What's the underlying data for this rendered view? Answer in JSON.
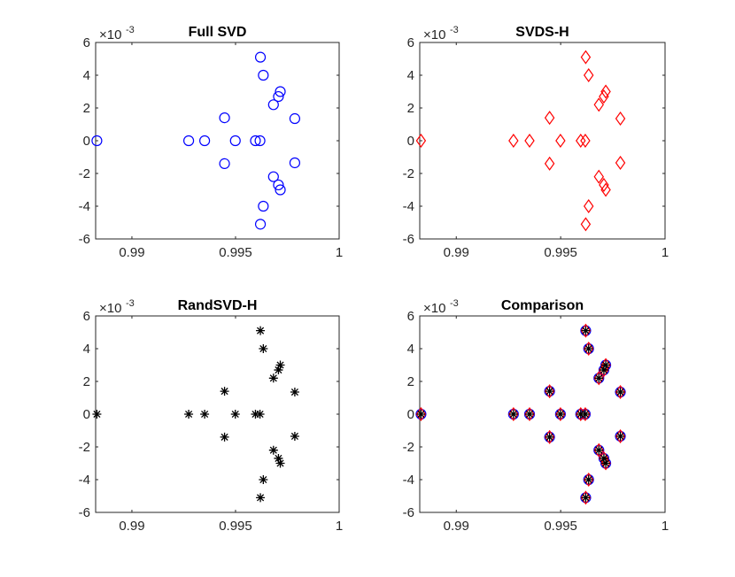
{
  "chart_data": [
    {
      "type": "scatter",
      "title": "Full SVD",
      "series": [
        {
          "name": "Full SVD",
          "marker": "circle",
          "color": "#0000ff"
        }
      ],
      "x_ticks": [
        "0.99",
        "0.995",
        "1"
      ],
      "y_ticks": [
        "6",
        "4",
        "2",
        "0",
        "-2",
        "-4",
        "-6"
      ],
      "y_exponent_base": "×10",
      "y_exponent_power": "-3",
      "xlim": [
        0.98825,
        1.0
      ],
      "ylim": [
        -6,
        6
      ]
    },
    {
      "type": "scatter",
      "title": "SVDS-H",
      "series": [
        {
          "name": "SVDS-H",
          "marker": "diamond",
          "color": "#ff0000"
        }
      ],
      "x_ticks": [
        "0.99",
        "0.995",
        "1"
      ],
      "y_ticks": [
        "6",
        "4",
        "2",
        "0",
        "-2",
        "-4",
        "-6"
      ],
      "y_exponent_base": "×10",
      "y_exponent_power": "-3",
      "xlim": [
        0.98825,
        1.0
      ],
      "ylim": [
        -6,
        6
      ]
    },
    {
      "type": "scatter",
      "title": "RandSVD-H",
      "series": [
        {
          "name": "RandSVD-H",
          "marker": "asterisk",
          "color": "#000000"
        }
      ],
      "x_ticks": [
        "0.99",
        "0.995",
        "1"
      ],
      "y_ticks": [
        "6",
        "4",
        "2",
        "0",
        "-2",
        "-4",
        "-6"
      ],
      "y_exponent_base": "×10",
      "y_exponent_power": "-3",
      "xlim": [
        0.98825,
        1.0
      ],
      "ylim": [
        -6,
        6
      ]
    },
    {
      "type": "scatter",
      "title": "Comparison",
      "series": [
        {
          "name": "Full SVD",
          "marker": "circle",
          "color": "#0000ff"
        },
        {
          "name": "SVDS-H",
          "marker": "diamond",
          "color": "#ff0000"
        },
        {
          "name": "RandSVD-H",
          "marker": "asterisk",
          "color": "#000000"
        }
      ],
      "x_ticks": [
        "0.99",
        "0.995",
        "1"
      ],
      "y_ticks": [
        "6",
        "4",
        "2",
        "0",
        "-2",
        "-4",
        "-6"
      ],
      "y_exponent_base": "×10",
      "y_exponent_power": "-3",
      "xlim": [
        0.98825,
        1.0
      ],
      "ylim": [
        -6,
        6
      ]
    }
  ],
  "points": [
    {
      "x": 0.98831,
      "y": 0
    },
    {
      "x": 0.99274,
      "y": 0
    },
    {
      "x": 0.99351,
      "y": 0
    },
    {
      "x": 0.99447,
      "y": 1.4
    },
    {
      "x": 0.99447,
      "y": -1.4
    },
    {
      "x": 0.99499,
      "y": 0
    },
    {
      "x": 0.99596,
      "y": 0
    },
    {
      "x": 0.99618,
      "y": 0
    },
    {
      "x": 0.9962,
      "y": 5.1
    },
    {
      "x": 0.9962,
      "y": -5.1
    },
    {
      "x": 0.99634,
      "y": 4.0
    },
    {
      "x": 0.99634,
      "y": -4.0
    },
    {
      "x": 0.99683,
      "y": 2.2
    },
    {
      "x": 0.99683,
      "y": -2.2
    },
    {
      "x": 0.99707,
      "y": 2.7
    },
    {
      "x": 0.99707,
      "y": -2.7
    },
    {
      "x": 0.99716,
      "y": 3.0
    },
    {
      "x": 0.99716,
      "y": -3.0
    },
    {
      "x": 0.99786,
      "y": 1.35
    },
    {
      "x": 0.99786,
      "y": -1.35
    }
  ]
}
